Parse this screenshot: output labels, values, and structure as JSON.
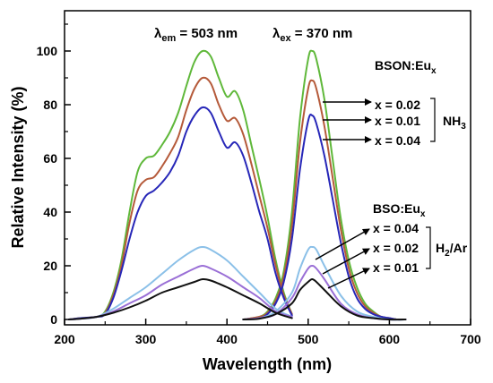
{
  "chart_data": {
    "type": "line",
    "xlabel": "Wavelength (nm)",
    "ylabel": "Relative Intensity (%)",
    "xlim": [
      200,
      700
    ],
    "ylim": [
      -2,
      115
    ],
    "xticks": [
      200,
      300,
      400,
      500,
      600,
      700
    ],
    "yticks": [
      0,
      20,
      40,
      60,
      80,
      100
    ],
    "header": {
      "em_symbol": "λ",
      "em_sub": "em",
      "em_value": " = 503 nm",
      "ex_symbol": "λ",
      "ex_sub": "ex",
      "ex_value": " = 370 nm"
    },
    "groups": [
      {
        "label_main": "BSON:Eu",
        "label_sub": "x",
        "atmosphere_main": "NH",
        "atmosphere_sub": "3",
        "entries": [
          "x = 0.02",
          "x = 0.01",
          "x = 0.04"
        ]
      },
      {
        "label_main": "BSO:Eu",
        "label_sub": "x",
        "atmosphere_main": "H",
        "atmosphere_sub": "2",
        "atmosphere_tail": "/Ar",
        "entries": [
          "x = 0.04",
          "x = 0.02",
          "x = 0.01"
        ]
      }
    ],
    "series": [
      {
        "color": "#5fb83a",
        "excitation": {
          "x": [
            205,
            220,
            240,
            250,
            260,
            270,
            280,
            290,
            300,
            310,
            320,
            330,
            340,
            350,
            360,
            370,
            380,
            390,
            400,
            410,
            420,
            430,
            440,
            450,
            460,
            470,
            480
          ],
          "y": [
            0,
            0.5,
            1,
            3,
            10,
            22,
            40,
            55,
            60,
            61,
            65,
            70,
            77,
            87,
            96,
            100,
            98,
            90,
            83,
            85,
            78,
            65,
            52,
            38,
            22,
            10,
            2
          ]
        },
        "emission": {
          "x": [
            420,
            440,
            450,
            460,
            470,
            480,
            490,
            500,
            505,
            510,
            520,
            530,
            540,
            550,
            560,
            570,
            580,
            590,
            600,
            610,
            620
          ],
          "y": [
            0,
            1,
            3,
            8,
            18,
            40,
            75,
            97,
            100,
            97,
            82,
            60,
            38,
            22,
            12,
            6,
            3,
            1,
            0.5,
            0,
            0
          ]
        }
      },
      {
        "color": "#b55a3a",
        "excitation": {
          "x": [
            205,
            220,
            240,
            250,
            260,
            270,
            280,
            290,
            300,
            310,
            320,
            330,
            340,
            350,
            360,
            370,
            380,
            390,
            400,
            410,
            420,
            430,
            440,
            450,
            460,
            470,
            480
          ],
          "y": [
            0,
            0.5,
            1,
            2.5,
            9,
            20,
            36,
            48,
            52,
            53,
            57,
            62,
            68,
            78,
            86,
            90,
            88,
            80,
            74,
            75,
            69,
            58,
            46,
            34,
            20,
            9,
            2
          ]
        },
        "emission": {
          "x": [
            420,
            440,
            450,
            460,
            470,
            480,
            490,
            500,
            505,
            510,
            520,
            530,
            540,
            550,
            560,
            570,
            580,
            590,
            600,
            610,
            620
          ],
          "y": [
            0,
            1,
            2.5,
            7,
            16,
            35,
            66,
            86,
            89,
            86,
            72,
            53,
            34,
            19,
            10,
            5,
            2.5,
            1,
            0.5,
            0,
            0
          ]
        }
      },
      {
        "color": "#2727b8",
        "excitation": {
          "x": [
            205,
            220,
            240,
            250,
            260,
            270,
            280,
            290,
            300,
            310,
            320,
            330,
            340,
            350,
            360,
            370,
            380,
            390,
            400,
            410,
            420,
            430,
            440,
            450,
            460,
            470,
            480
          ],
          "y": [
            0,
            0.5,
            1,
            2,
            8,
            18,
            30,
            40,
            46,
            48,
            51,
            55,
            61,
            70,
            76,
            79,
            77,
            70,
            64,
            66,
            61,
            51,
            40,
            30,
            17,
            8,
            1.5
          ]
        },
        "emission": {
          "x": [
            420,
            440,
            450,
            460,
            470,
            480,
            490,
            500,
            505,
            510,
            520,
            530,
            540,
            550,
            560,
            570,
            580,
            590,
            600,
            610,
            620
          ],
          "y": [
            0,
            0.5,
            2,
            6,
            14,
            30,
            56,
            74,
            76,
            73,
            61,
            45,
            29,
            16,
            8,
            4,
            2,
            1,
            0.5,
            0,
            0
          ]
        }
      },
      {
        "color": "#8bc0e8",
        "excitation": {
          "x": [
            205,
            220,
            240,
            260,
            280,
            300,
            320,
            340,
            360,
            370,
            380,
            400,
            420,
            440,
            460,
            480
          ],
          "y": [
            0,
            0.3,
            1,
            4,
            8,
            12,
            17,
            22,
            26,
            27,
            26,
            22,
            16,
            10,
            4,
            1
          ]
        },
        "emission": {
          "x": [
            420,
            440,
            460,
            480,
            490,
            500,
            505,
            510,
            520,
            540,
            560,
            580,
            600,
            620
          ],
          "y": [
            0,
            0.5,
            3,
            10,
            19,
            26,
            27,
            26,
            20,
            9,
            3,
            1,
            0,
            0
          ]
        }
      },
      {
        "color": "#9a6fd6",
        "excitation": {
          "x": [
            205,
            220,
            240,
            260,
            280,
            300,
            320,
            340,
            360,
            370,
            380,
            400,
            420,
            440,
            460,
            480
          ],
          "y": [
            0,
            0.3,
            1,
            3,
            6,
            9,
            13,
            16,
            19,
            20,
            19,
            16,
            12,
            8,
            3,
            1
          ]
        },
        "emission": {
          "x": [
            420,
            440,
            460,
            480,
            490,
            500,
            505,
            510,
            520,
            540,
            560,
            580,
            600,
            620
          ],
          "y": [
            0,
            0.5,
            2,
            8,
            14,
            19,
            20,
            19,
            15,
            6,
            2,
            0.5,
            0,
            0
          ]
        }
      },
      {
        "color": "#111111",
        "excitation": {
          "x": [
            205,
            220,
            240,
            260,
            280,
            300,
            320,
            340,
            360,
            370,
            380,
            400,
            420,
            440,
            460,
            480
          ],
          "y": [
            0,
            0.3,
            1,
            2.5,
            4.5,
            7,
            10,
            12,
            14,
            15,
            14.5,
            12,
            9,
            6,
            2.5,
            0.5
          ]
        },
        "emission": {
          "x": [
            420,
            440,
            460,
            480,
            490,
            500,
            505,
            510,
            520,
            540,
            560,
            580,
            600,
            620
          ],
          "y": [
            0,
            0.3,
            2,
            6,
            11,
            14,
            15,
            14,
            11,
            5,
            1.5,
            0.5,
            0,
            0
          ]
        }
      }
    ]
  }
}
